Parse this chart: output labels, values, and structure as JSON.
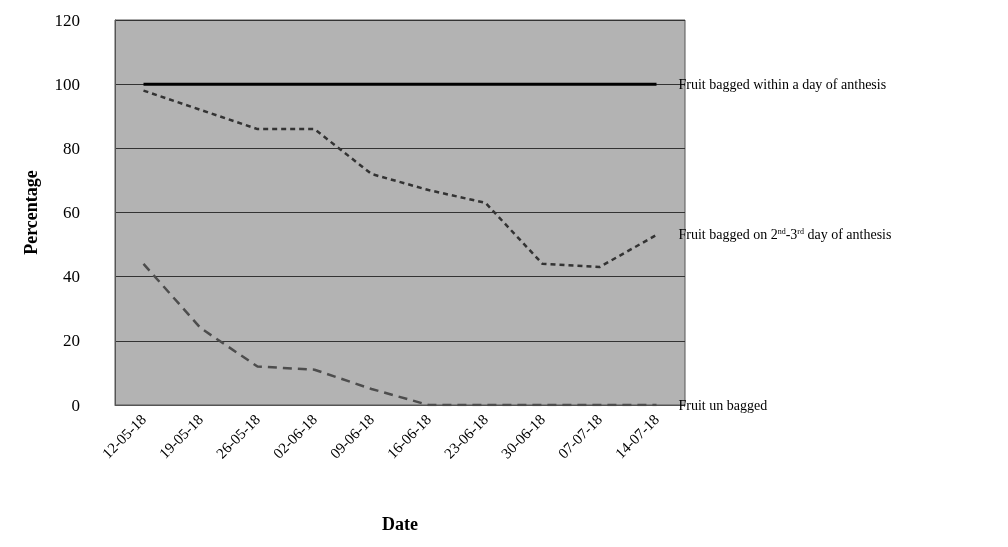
{
  "chart_data": {
    "type": "line",
    "xlabel": "Date",
    "ylabel": "Percentage",
    "categories": [
      "12-05-18",
      "19-05-18",
      "26-05-18",
      "02-06-18",
      "09-06-18",
      "16-06-18",
      "23-06-18",
      "30-06-18",
      "07-07-18",
      "14-07-18"
    ],
    "series": [
      {
        "name": "Fruit bagged within a day of anthesis",
        "color": "#000000",
        "line_style": "solid",
        "values": [
          100,
          100,
          100,
          100,
          100,
          100,
          100,
          100,
          100,
          100
        ]
      },
      {
        "name": "Fruit bagged on 2$^{nd}$-3$^{rd}$ day of anthesis",
        "color": "#333333",
        "line_style": "dotted",
        "values": [
          98,
          92,
          86,
          86,
          72,
          67,
          63,
          44,
          43,
          53
        ]
      },
      {
        "name": "Fruit un bagged",
        "color": "#4d4d4d",
        "line_style": "dashed",
        "values": [
          44,
          24,
          12,
          11,
          5,
          0,
          0,
          0,
          0,
          0
        ]
      }
    ],
    "ylim": [
      0,
      120
    ],
    "yticks": [
      0,
      20,
      40,
      60,
      80,
      100,
      120
    ],
    "grid": "y",
    "marker": "none",
    "legend": false
  }
}
